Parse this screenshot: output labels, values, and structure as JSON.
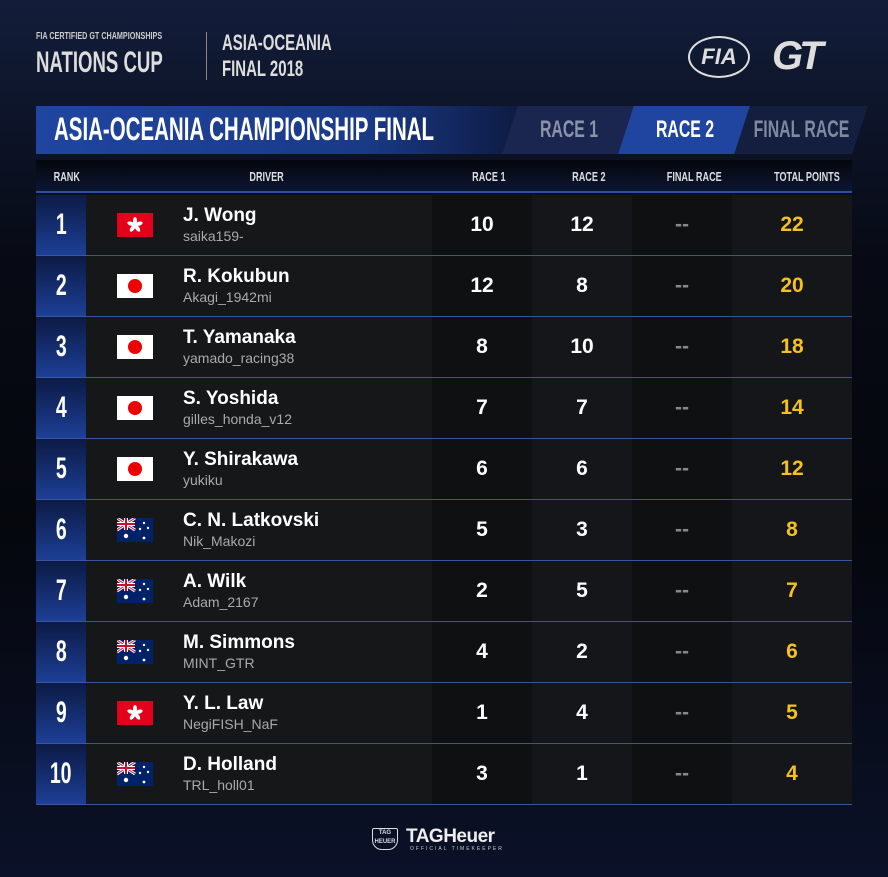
{
  "header": {
    "small": "FIA CERTIFIED GT CHAMPIONSHIPS",
    "big": "NATIONS CUP",
    "region": "ASIA-OCEANIA",
    "event": "FINAL 2018",
    "logo_fia": "FIA",
    "logo_gt": "GT"
  },
  "title": "ASIA-OCEANIA CHAMPIONSHIP FINAL",
  "tabs": [
    {
      "label": "RACE 1"
    },
    {
      "label": "RACE 2",
      "active": true
    },
    {
      "label": "FINAL RACE"
    }
  ],
  "columns": {
    "rank": "RANK",
    "driver": "DRIVER",
    "race1": "RACE 1",
    "race2": "RACE 2",
    "final": "FINAL RACE",
    "total": "TOTAL POINTS"
  },
  "colors": {
    "accent": "#1f45a0",
    "points": "#f4c21e"
  },
  "rows": [
    {
      "rank": "1",
      "flag": "hong-kong",
      "name": "J. Wong",
      "user": "saika159-",
      "r1": "10",
      "r2": "12",
      "fr": "--",
      "tp": "22"
    },
    {
      "rank": "2",
      "flag": "japan",
      "name": "R. Kokubun",
      "user": "Akagi_1942mi",
      "r1": "12",
      "r2": "8",
      "fr": "--",
      "tp": "20"
    },
    {
      "rank": "3",
      "flag": "japan",
      "name": "T. Yamanaka",
      "user": "yamado_racing38",
      "r1": "8",
      "r2": "10",
      "fr": "--",
      "tp": "18"
    },
    {
      "rank": "4",
      "flag": "japan",
      "name": "S. Yoshida",
      "user": "gilles_honda_v12",
      "r1": "7",
      "r2": "7",
      "fr": "--",
      "tp": "14"
    },
    {
      "rank": "5",
      "flag": "japan",
      "name": "Y. Shirakawa",
      "user": "yukiku",
      "r1": "6",
      "r2": "6",
      "fr": "--",
      "tp": "12"
    },
    {
      "rank": "6",
      "flag": "australia",
      "name": "C. N. Latkovski",
      "user": "Nik_Makozi",
      "r1": "5",
      "r2": "3",
      "fr": "--",
      "tp": "8"
    },
    {
      "rank": "7",
      "flag": "australia",
      "name": "A. Wilk",
      "user": "Adam_2167",
      "r1": "2",
      "r2": "5",
      "fr": "--",
      "tp": "7"
    },
    {
      "rank": "8",
      "flag": "australia",
      "name": "M. Simmons",
      "user": "MINT_GTR",
      "r1": "4",
      "r2": "2",
      "fr": "--",
      "tp": "6"
    },
    {
      "rank": "9",
      "flag": "hong-kong",
      "name": "Y. L. Law",
      "user": "NegiFISH_NaF",
      "r1": "1",
      "r2": "4",
      "fr": "--",
      "tp": "5"
    },
    {
      "rank": "10",
      "flag": "australia",
      "name": "D. Holland",
      "user": "TRL_holl01",
      "r1": "3",
      "r2": "1",
      "fr": "--",
      "tp": "4"
    }
  ],
  "footer": {
    "badge": "TAG HEUER",
    "brand": "TAGHeuer",
    "tagline": "OFFICIAL TIMEKEEPER"
  }
}
